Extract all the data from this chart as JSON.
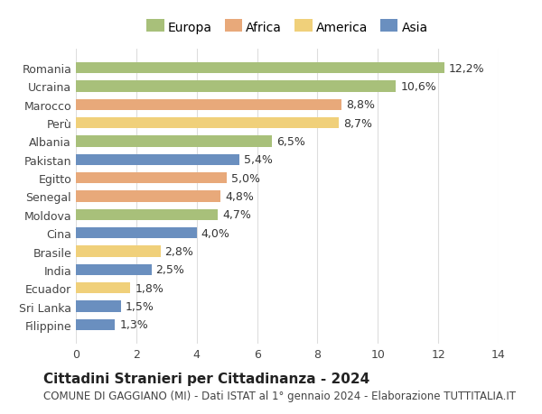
{
  "countries": [
    "Romania",
    "Ucraina",
    "Marocco",
    "Perù",
    "Albania",
    "Pakistan",
    "Egitto",
    "Senegal",
    "Moldova",
    "Cina",
    "Brasile",
    "India",
    "Ecuador",
    "Sri Lanka",
    "Filippine"
  ],
  "values": [
    12.2,
    10.6,
    8.8,
    8.7,
    6.5,
    5.4,
    5.0,
    4.8,
    4.7,
    4.0,
    2.8,
    2.5,
    1.8,
    1.5,
    1.3
  ],
  "continents": [
    "Europa",
    "Europa",
    "Africa",
    "America",
    "Europa",
    "Asia",
    "Africa",
    "Africa",
    "Europa",
    "Asia",
    "America",
    "Asia",
    "America",
    "Asia",
    "Asia"
  ],
  "colors": {
    "Europa": "#a8c07a",
    "Africa": "#e8a97a",
    "America": "#f0d07a",
    "Asia": "#6a8fbf"
  },
  "legend_order": [
    "Europa",
    "Africa",
    "America",
    "Asia"
  ],
  "title": "Cittadini Stranieri per Cittadinanza - 2024",
  "subtitle": "COMUNE DI GAGGIANO (MI) - Dati ISTAT al 1° gennaio 2024 - Elaborazione TUTTITALIA.IT",
  "xlim": [
    0,
    14
  ],
  "xticks": [
    0,
    2,
    4,
    6,
    8,
    10,
    12,
    14
  ],
  "bar_height": 0.6,
  "background_color": "#ffffff",
  "grid_color": "#dddddd",
  "label_fontsize": 9,
  "title_fontsize": 11,
  "subtitle_fontsize": 8.5,
  "tick_fontsize": 9,
  "legend_fontsize": 10
}
